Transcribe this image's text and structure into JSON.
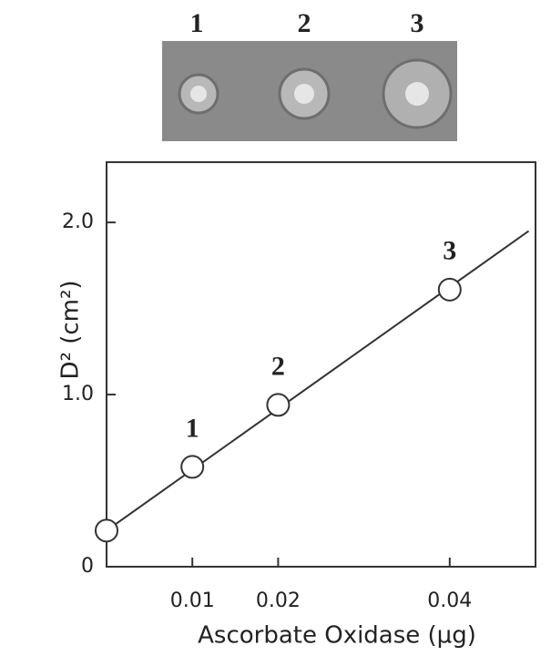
{
  "inset": {
    "labels": [
      "1",
      "2",
      "3"
    ]
  },
  "chart_data": {
    "type": "scatter",
    "xlabel": "Ascorbate Oxidase (µg)",
    "ylabel": "D² (cm²)",
    "xlim": [
      0,
      0.05
    ],
    "ylim": [
      0,
      2.35
    ],
    "xticks": [
      0.01,
      0.02,
      0.04
    ],
    "yticks": [
      0,
      {
        "value": 1,
        "label": "1.0"
      },
      {
        "value": 2,
        "label": "2.0"
      }
    ],
    "series": [
      {
        "x": [
          0,
          0.01,
          0.02,
          0.04
        ],
        "values": [
          0.21,
          0.58,
          0.94,
          1.61
        ],
        "point_labels": [
          null,
          "1",
          "2",
          "3"
        ],
        "color": "#333"
      }
    ],
    "fit_line": {
      "x": [
        0,
        0.0492
      ],
      "values": [
        0.21,
        1.95
      ]
    }
  }
}
